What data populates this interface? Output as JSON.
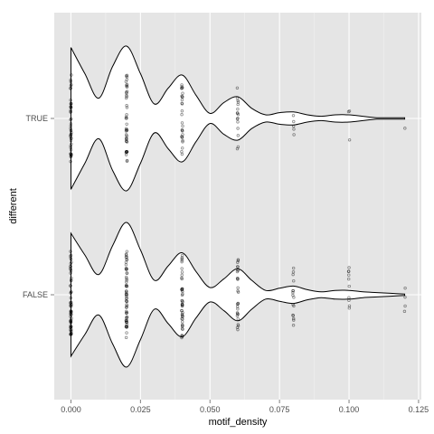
{
  "chart_data": {
    "type": "violin",
    "xlabel": "motif_density",
    "ylabel": "different",
    "xlim": [
      -0.006,
      0.126
    ],
    "x_ticks": [
      "0.000",
      "0.025",
      "0.050",
      "0.075",
      "0.100",
      "0.125"
    ],
    "x_tick_values": [
      0,
      0.025,
      0.05,
      0.075,
      0.1,
      0.125
    ],
    "categories": [
      "TRUE",
      "FALSE"
    ],
    "grid": true,
    "legend": "none",
    "colors": {
      "panel": "#e5e5e5",
      "grid_major": "#ffffff",
      "violin_fill": "#ffffff",
      "violin_outline": "#000000",
      "points": "#000000"
    },
    "series": [
      {
        "category": "TRUE",
        "density_profile": {
          "x": [
            0,
            0.005,
            0.01,
            0.015,
            0.02,
            0.025,
            0.03,
            0.035,
            0.04,
            0.045,
            0.05,
            0.055,
            0.06,
            0.065,
            0.07,
            0.075,
            0.08,
            0.085,
            0.09,
            0.095,
            0.1,
            0.105,
            0.11,
            0.115,
            0.12
          ],
          "relative_width": [
            0.98,
            0.62,
            0.28,
            0.72,
            1.0,
            0.62,
            0.2,
            0.42,
            0.6,
            0.32,
            0.07,
            0.22,
            0.3,
            0.14,
            0.05,
            0.08,
            0.09,
            0.05,
            0.03,
            0.05,
            0.05,
            0.03,
            0.01,
            0.01,
            0.01
          ]
        },
        "observed_values": [
          {
            "x": 0.0,
            "count": 45
          },
          {
            "x": 0.02,
            "count": 45
          },
          {
            "x": 0.04,
            "count": 28
          },
          {
            "x": 0.06,
            "count": 16
          },
          {
            "x": 0.08,
            "count": 5
          },
          {
            "x": 0.1,
            "count": 3
          },
          {
            "x": 0.12,
            "count": 1
          }
        ]
      },
      {
        "category": "FALSE",
        "density_profile": {
          "x": [
            0,
            0.005,
            0.01,
            0.015,
            0.02,
            0.025,
            0.03,
            0.035,
            0.04,
            0.045,
            0.05,
            0.055,
            0.06,
            0.065,
            0.07,
            0.075,
            0.08,
            0.085,
            0.09,
            0.095,
            0.1,
            0.105,
            0.11,
            0.115,
            0.12
          ],
          "relative_width": [
            0.85,
            0.55,
            0.28,
            0.68,
            1.0,
            0.62,
            0.2,
            0.4,
            0.58,
            0.32,
            0.1,
            0.22,
            0.36,
            0.2,
            0.06,
            0.09,
            0.12,
            0.07,
            0.04,
            0.06,
            0.06,
            0.04,
            0.03,
            0.02,
            0.01
          ]
        },
        "observed_values": [
          {
            "x": 0.0,
            "count": 60
          },
          {
            "x": 0.02,
            "count": 60
          },
          {
            "x": 0.04,
            "count": 45
          },
          {
            "x": 0.06,
            "count": 28
          },
          {
            "x": 0.08,
            "count": 16
          },
          {
            "x": 0.1,
            "count": 10
          },
          {
            "x": 0.12,
            "count": 4
          }
        ]
      }
    ]
  }
}
